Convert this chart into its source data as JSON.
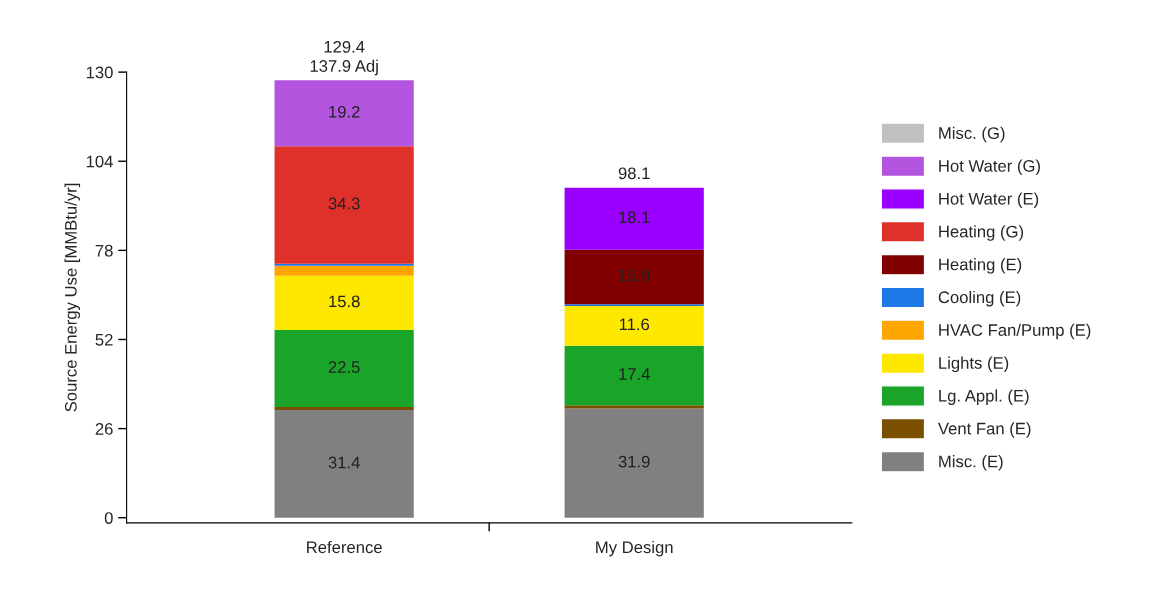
{
  "chart_data": {
    "type": "bar",
    "stacked": true,
    "ylabel": "Source Energy Use [MMBtu/yr]",
    "categories": [
      "Reference",
      "My Design"
    ],
    "series": [
      {
        "name": "Misc. (E)",
        "color": "#808080",
        "values": [
          31.4,
          31.9
        ],
        "value_labels": [
          "31.4",
          "31.9"
        ]
      },
      {
        "name": "Vent Fan (E)",
        "color": "#7a5000",
        "values": [
          0.9,
          0.9
        ]
      },
      {
        "name": "Lg. Appl. (E)",
        "color": "#1aa52a",
        "values": [
          22.5,
          17.4
        ],
        "value_labels": [
          "22.5",
          "17.4"
        ]
      },
      {
        "name": "Lights (E)",
        "color": "#ffe800",
        "values": [
          15.8,
          11.6
        ],
        "value_labels": [
          "15.8",
          "11.6"
        ]
      },
      {
        "name": "HVAC Fan/Pump (E)",
        "color": "#ffa500",
        "values": [
          2.9,
          0
        ]
      },
      {
        "name": "Cooling (E)",
        "color": "#1e78e6",
        "values": [
          0.6,
          0.5
        ]
      },
      {
        "name": "Heating (E)",
        "color": "#800000",
        "values": [
          0,
          15.9
        ],
        "value_labels": [
          null,
          "15.9"
        ]
      },
      {
        "name": "Heating (G)",
        "color": "#e0302a",
        "values": [
          34.3,
          0
        ],
        "value_labels": [
          "34.3",
          null
        ]
      },
      {
        "name": "Hot Water (E)",
        "color": "#9900ff",
        "values": [
          0,
          18.1
        ],
        "value_labels": [
          null,
          "18.1"
        ]
      },
      {
        "name": "Hot Water (G)",
        "color": "#b455e0",
        "values": [
          19.2,
          0
        ],
        "value_labels": [
          "19.2",
          null
        ]
      },
      {
        "name": "Misc. (G)",
        "color": "#c0c0c0",
        "values": [
          0,
          0
        ]
      }
    ],
    "annotations": [
      {
        "text": "129.4\n137.9 Adj",
        "x": "Reference",
        "y": 127.6
      },
      {
        "text": "98.1",
        "x": "My Design",
        "y": 96.3
      }
    ],
    "ylim": [
      -1.5,
      130
    ],
    "yticks": [
      0,
      26,
      52,
      78,
      104,
      130
    ],
    "grid": false,
    "legend": "right"
  }
}
